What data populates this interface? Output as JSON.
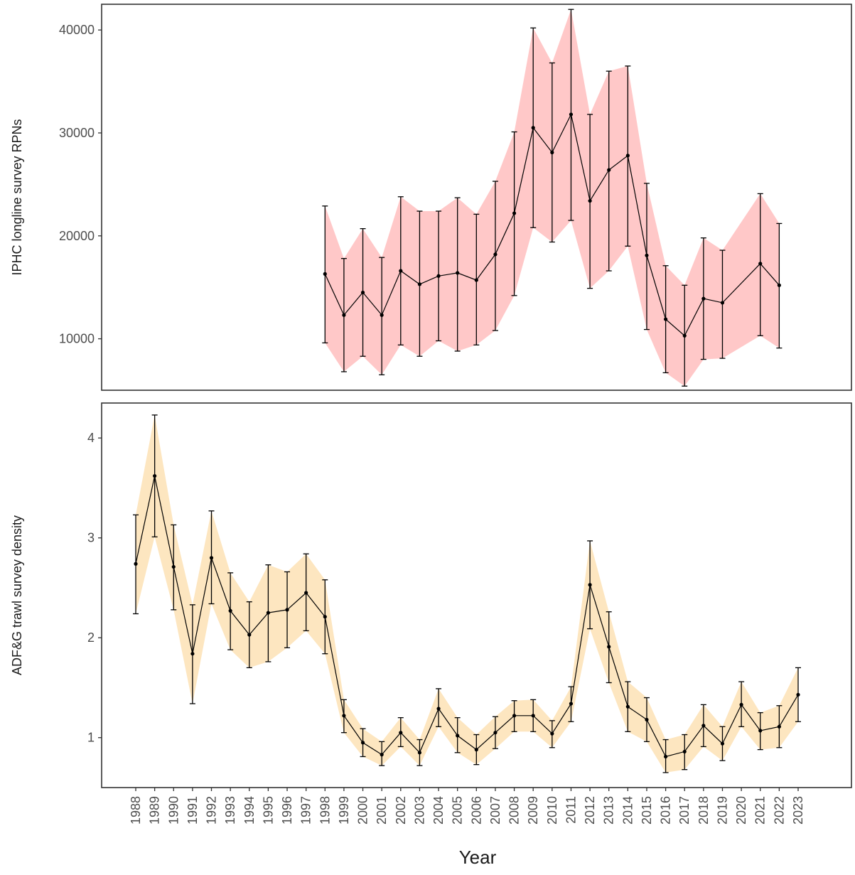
{
  "chart_data": {
    "type": "line",
    "x_title": "Year",
    "x": [
      1988,
      1989,
      1990,
      1991,
      1992,
      1993,
      1994,
      1995,
      1996,
      1997,
      1998,
      1999,
      2000,
      2001,
      2002,
      2003,
      2004,
      2005,
      2006,
      2007,
      2008,
      2009,
      2010,
      2011,
      2012,
      2013,
      2014,
      2015,
      2016,
      2017,
      2018,
      2019,
      2020,
      2021,
      2022,
      2023
    ],
    "panels": [
      {
        "ylabel": "IPHC longline survey RPNs",
        "ylim": [
          5000,
          42500
        ],
        "yticks": [
          10000,
          20000,
          30000,
          40000
        ],
        "ribbon_color": "#ffc8c8",
        "points": [
          {
            "year": 1998,
            "value": 16300,
            "lower": 9600,
            "upper": 22900
          },
          {
            "year": 1999,
            "value": 12300,
            "lower": 6800,
            "upper": 17800
          },
          {
            "year": 2000,
            "value": 14500,
            "lower": 8300,
            "upper": 20700
          },
          {
            "year": 2001,
            "value": 12300,
            "lower": 6500,
            "upper": 17900
          },
          {
            "year": 2002,
            "value": 16600,
            "lower": 9400,
            "upper": 23800
          },
          {
            "year": 2003,
            "value": 15300,
            "lower": 8300,
            "upper": 22400
          },
          {
            "year": 2004,
            "value": 16100,
            "lower": 9800,
            "upper": 22400
          },
          {
            "year": 2005,
            "value": 16400,
            "lower": 8800,
            "upper": 23700
          },
          {
            "year": 2006,
            "value": 15700,
            "lower": 9400,
            "upper": 22100
          },
          {
            "year": 2007,
            "value": 18200,
            "lower": 10800,
            "upper": 25300
          },
          {
            "year": 2008,
            "value": 22200,
            "lower": 14200,
            "upper": 30100
          },
          {
            "year": 2009,
            "value": 30500,
            "lower": 20800,
            "upper": 40200
          },
          {
            "year": 2010,
            "value": 28100,
            "lower": 19400,
            "upper": 36800
          },
          {
            "year": 2011,
            "value": 31800,
            "lower": 21500,
            "upper": 42000
          },
          {
            "year": 2012,
            "value": 23400,
            "lower": 14900,
            "upper": 31800
          },
          {
            "year": 2013,
            "value": 26400,
            "lower": 16600,
            "upper": 36000
          },
          {
            "year": 2014,
            "value": 27800,
            "lower": 19000,
            "upper": 36500
          },
          {
            "year": 2015,
            "value": 18100,
            "lower": 10900,
            "upper": 25100
          },
          {
            "year": 2016,
            "value": 11900,
            "lower": 6700,
            "upper": 17100
          },
          {
            "year": 2017,
            "value": 10300,
            "lower": 5400,
            "upper": 15200
          },
          {
            "year": 2018,
            "value": 13900,
            "lower": 8000,
            "upper": 19800
          },
          {
            "year": 2019,
            "value": 13500,
            "lower": 8100,
            "upper": 18600
          },
          {
            "year": 2021,
            "value": 17300,
            "lower": 10300,
            "upper": 24100
          },
          {
            "year": 2022,
            "value": 15200,
            "lower": 9100,
            "upper": 21200
          }
        ]
      },
      {
        "ylabel": "ADF&G trawl survey density",
        "ylim": [
          0.5,
          4.35
        ],
        "yticks": [
          1,
          2,
          3,
          4
        ],
        "ribbon_color": "#fde6c0",
        "points": [
          {
            "year": 1988,
            "value": 2.74,
            "lower": 2.24,
            "upper": 3.23
          },
          {
            "year": 1989,
            "value": 3.62,
            "lower": 3.01,
            "upper": 4.23
          },
          {
            "year": 1990,
            "value": 2.71,
            "lower": 2.28,
            "upper": 3.13
          },
          {
            "year": 1991,
            "value": 1.84,
            "lower": 1.34,
            "upper": 2.33
          },
          {
            "year": 1992,
            "value": 2.8,
            "lower": 2.34,
            "upper": 3.27
          },
          {
            "year": 1993,
            "value": 2.27,
            "lower": 1.88,
            "upper": 2.65
          },
          {
            "year": 1994,
            "value": 2.03,
            "lower": 1.7,
            "upper": 2.36
          },
          {
            "year": 1995,
            "value": 2.25,
            "lower": 1.76,
            "upper": 2.73
          },
          {
            "year": 1996,
            "value": 2.28,
            "lower": 1.9,
            "upper": 2.66
          },
          {
            "year": 1997,
            "value": 2.45,
            "lower": 2.07,
            "upper": 2.84
          },
          {
            "year": 1998,
            "value": 2.21,
            "lower": 1.84,
            "upper": 2.58
          },
          {
            "year": 1999,
            "value": 1.22,
            "lower": 1.05,
            "upper": 1.38
          },
          {
            "year": 2000,
            "value": 0.95,
            "lower": 0.81,
            "upper": 1.09
          },
          {
            "year": 2001,
            "value": 0.83,
            "lower": 0.72,
            "upper": 0.96
          },
          {
            "year": 2002,
            "value": 1.05,
            "lower": 0.91,
            "upper": 1.2
          },
          {
            "year": 2003,
            "value": 0.85,
            "lower": 0.72,
            "upper": 0.98
          },
          {
            "year": 2004,
            "value": 1.29,
            "lower": 1.11,
            "upper": 1.49
          },
          {
            "year": 2005,
            "value": 1.02,
            "lower": 0.85,
            "upper": 1.2
          },
          {
            "year": 2006,
            "value": 0.88,
            "lower": 0.73,
            "upper": 1.03
          },
          {
            "year": 2007,
            "value": 1.05,
            "lower": 0.89,
            "upper": 1.21
          },
          {
            "year": 2008,
            "value": 1.22,
            "lower": 1.06,
            "upper": 1.37
          },
          {
            "year": 2009,
            "value": 1.22,
            "lower": 1.06,
            "upper": 1.38
          },
          {
            "year": 2010,
            "value": 1.04,
            "lower": 0.9,
            "upper": 1.17
          },
          {
            "year": 2011,
            "value": 1.34,
            "lower": 1.16,
            "upper": 1.51
          },
          {
            "year": 2012,
            "value": 2.53,
            "lower": 2.09,
            "upper": 2.97
          },
          {
            "year": 2013,
            "value": 1.91,
            "lower": 1.55,
            "upper": 2.26
          },
          {
            "year": 2014,
            "value": 1.31,
            "lower": 1.06,
            "upper": 1.56
          },
          {
            "year": 2015,
            "value": 1.18,
            "lower": 0.96,
            "upper": 1.4
          },
          {
            "year": 2016,
            "value": 0.81,
            "lower": 0.65,
            "upper": 0.98
          },
          {
            "year": 2017,
            "value": 0.86,
            "lower": 0.68,
            "upper": 1.03
          },
          {
            "year": 2018,
            "value": 1.12,
            "lower": 0.91,
            "upper": 1.33
          },
          {
            "year": 2019,
            "value": 0.94,
            "lower": 0.77,
            "upper": 1.11
          },
          {
            "year": 2020,
            "value": 1.33,
            "lower": 1.11,
            "upper": 1.56
          },
          {
            "year": 2021,
            "value": 1.07,
            "lower": 0.88,
            "upper": 1.25
          },
          {
            "year": 2022,
            "value": 1.11,
            "lower": 0.9,
            "upper": 1.32
          },
          {
            "year": 2023,
            "value": 1.43,
            "lower": 1.16,
            "upper": 1.7
          }
        ]
      }
    ],
    "grid": false
  }
}
